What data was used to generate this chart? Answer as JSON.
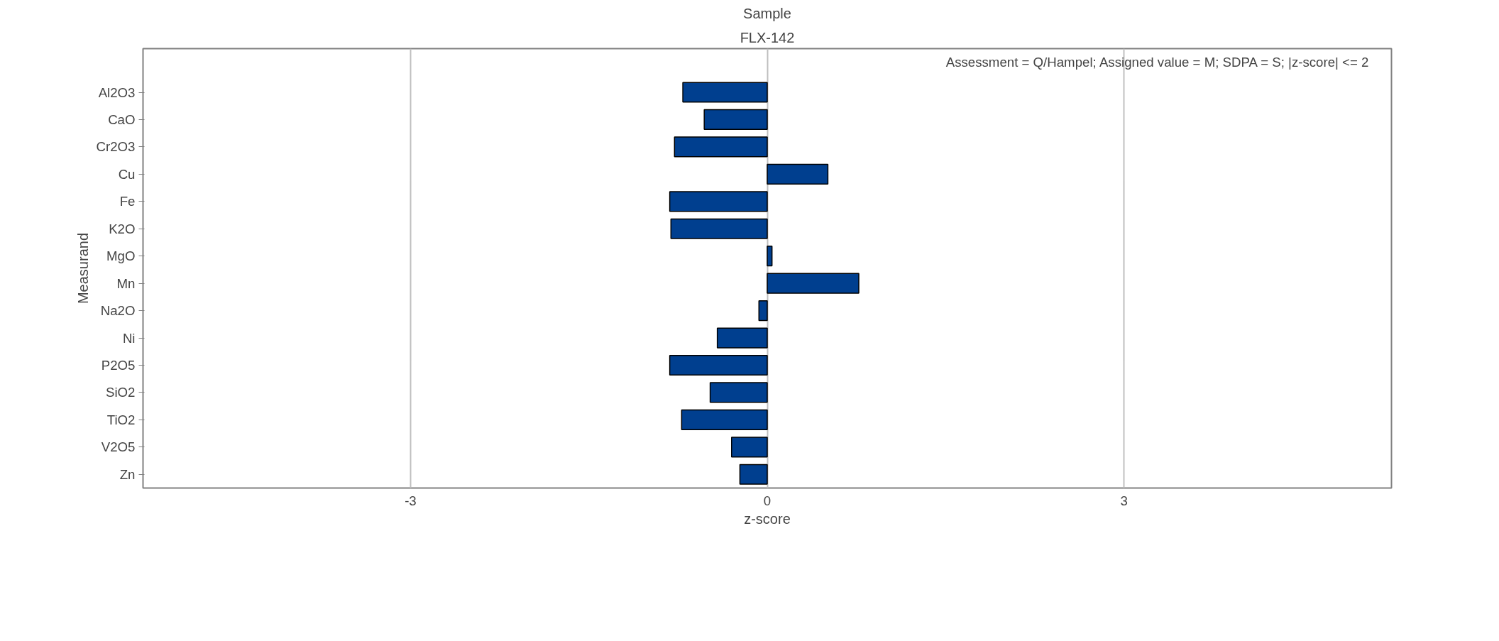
{
  "chart_data": {
    "type": "bar",
    "orientation": "horizontal",
    "title": "Sample",
    "subtitle": "FLX-142",
    "xlabel": "z-score",
    "ylabel": "Measurand",
    "categories": [
      "Al2O3",
      "CaO",
      "Cr2O3",
      "Cu",
      "Fe",
      "K2O",
      "MgO",
      "Mn",
      "Na2O",
      "Ni",
      "P2O5",
      "SiO2",
      "TiO2",
      "V2O5",
      "Zn"
    ],
    "values": [
      -0.71,
      -0.53,
      -0.78,
      0.51,
      -0.82,
      -0.81,
      0.04,
      0.77,
      -0.07,
      -0.42,
      -0.82,
      -0.48,
      -0.72,
      -0.3,
      -0.23
    ],
    "color": "#003f8f",
    "xlim": [
      -5.25,
      5.25
    ],
    "xticks": [
      -3,
      0,
      3
    ],
    "grid": "x",
    "annotations": [
      "Assessment = Q/Hampel; Assigned value = M; SDPA = S; |z-score| <= 2"
    ]
  }
}
